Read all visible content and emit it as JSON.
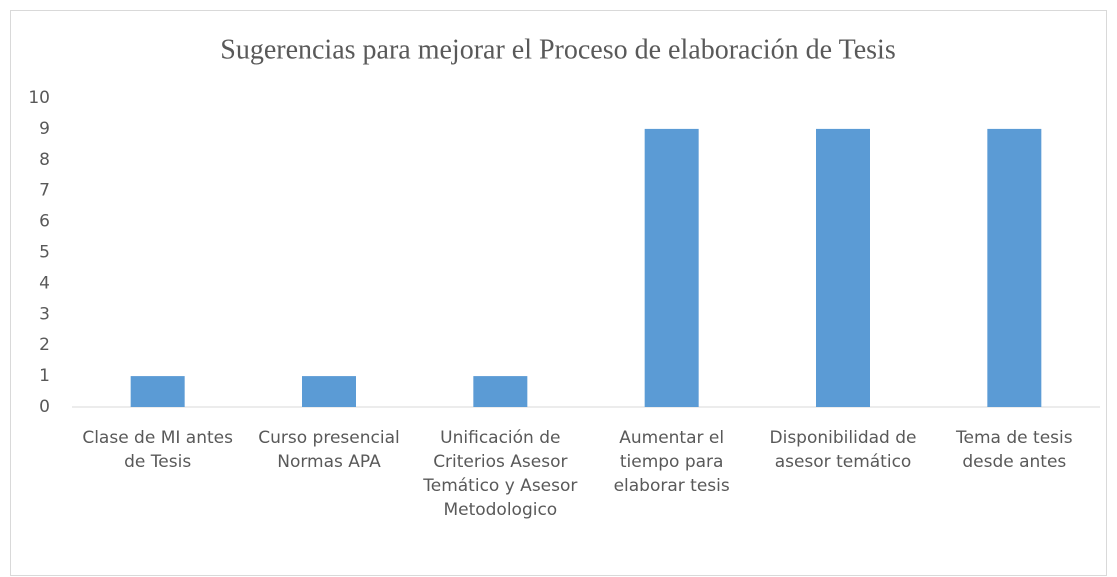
{
  "chart_data": {
    "type": "bar",
    "title": "Sugerencias para mejorar el Proceso de elaboración de Tesis",
    "categories": [
      "Clase de MI antes de Tesis",
      "Curso presencial Normas APA",
      "Unificación de Criterios Asesor Temático y Asesor Metodologico",
      "Aumentar el tiempo para elaborar tesis",
      "Disponibilidad de asesor temático",
      "Tema de tesis desde antes"
    ],
    "values": [
      1,
      1,
      1,
      9,
      9,
      9
    ],
    "color": "#5b9bd5",
    "ylim": [
      0,
      10
    ],
    "yticks": [
      0,
      1,
      2,
      3,
      4,
      5,
      6,
      7,
      8,
      9,
      10
    ],
    "grid": false
  }
}
